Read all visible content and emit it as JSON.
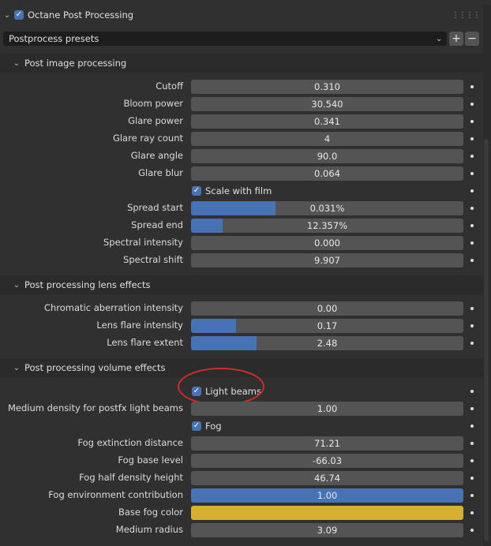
{
  "panel": {
    "title": "Octane Post Processing",
    "enabled": true
  },
  "presets": {
    "value": "Postprocess presets",
    "add": "+",
    "remove": "−"
  },
  "sections": {
    "image": {
      "title": "Post image processing",
      "cutoff": {
        "label": "Cutoff",
        "value": "0.310"
      },
      "bloom_power": {
        "label": "Bloom power",
        "value": "30.540"
      },
      "glare_power": {
        "label": "Glare power",
        "value": "0.341"
      },
      "glare_ray_count": {
        "label": "Glare ray count",
        "value": "4"
      },
      "glare_angle": {
        "label": "Glare angle",
        "value": "90.0"
      },
      "glare_blur": {
        "label": "Glare blur",
        "value": "0.064"
      },
      "scale_with_film": {
        "label": "Scale with film",
        "checked": true
      },
      "spread_start": {
        "label": "Spread start",
        "value": "0.031%",
        "fraction": 0.31
      },
      "spread_end": {
        "label": "Spread end",
        "value": "12.357%",
        "fraction": 0.116
      },
      "spectral_intensity": {
        "label": "Spectral intensity",
        "value": "0.000"
      },
      "spectral_shift": {
        "label": "Spectral shift",
        "value": "9.907"
      }
    },
    "lens": {
      "title": "Post processing lens effects",
      "chromatic": {
        "label": "Chromatic aberration intensity",
        "value": "0.00"
      },
      "flare_intensity": {
        "label": "Lens flare intensity",
        "value": "0.17",
        "fraction": 0.165
      },
      "flare_extent": {
        "label": "Lens flare extent",
        "value": "2.48",
        "fraction": 0.24
      }
    },
    "volume": {
      "title": "Post processing volume effects",
      "light_beams": {
        "label": "Light beams",
        "checked": true
      },
      "medium_density": {
        "label": "Medium density for postfx light beams",
        "value": "1.00"
      },
      "fog": {
        "label": "Fog",
        "checked": true
      },
      "fog_extinction": {
        "label": "Fog extinction distance",
        "value": "71.21"
      },
      "fog_base_level": {
        "label": "Fog base level",
        "value": "-66.03"
      },
      "fog_half_density": {
        "label": "Fog half density height",
        "value": "46.74"
      },
      "fog_env": {
        "label": "Fog environment contribution",
        "value": "1.00",
        "fraction": 1.0
      },
      "base_fog_color": {
        "label": "Base fog color",
        "color": "#d6ae30"
      },
      "medium_radius": {
        "label": "Medium radius",
        "value": "3.09"
      }
    }
  },
  "colors": {
    "accent": "#4772b3",
    "annotation": "#d42b2b"
  }
}
